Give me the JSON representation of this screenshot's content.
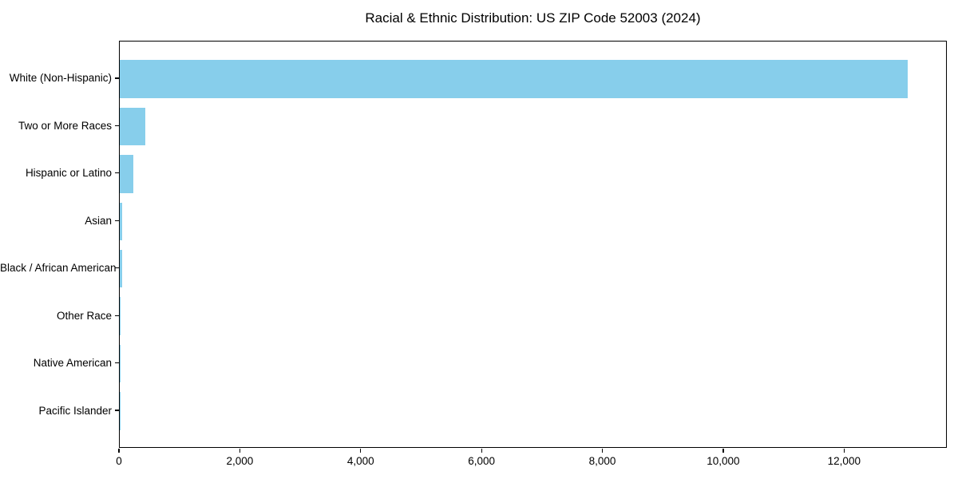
{
  "chart_data": {
    "type": "bar",
    "orientation": "horizontal",
    "title": "Racial & Ethnic Distribution: US ZIP Code 52003 (2024)",
    "categories": [
      "White (Non-Hispanic)",
      "Two or More Races",
      "Hispanic or Latino",
      "Asian",
      "Black / African American",
      "Other Race",
      "Native American",
      "Pacific Islander"
    ],
    "values": [
      13043,
      419,
      229,
      40,
      46,
      12,
      5,
      2
    ],
    "bar_color": "#87CEEB",
    "axis_color": "#000000",
    "background_color": "#ffffff",
    "xlabel": "",
    "ylabel": "",
    "xlim": [
      0,
      13700
    ],
    "xticks": [
      0,
      2000,
      4000,
      6000,
      8000,
      10000,
      12000
    ],
    "xtick_labels": [
      "0",
      "2,000",
      "4,000",
      "6,000",
      "8,000",
      "10,000",
      "12,000"
    ],
    "grid": false,
    "legend": null
  }
}
